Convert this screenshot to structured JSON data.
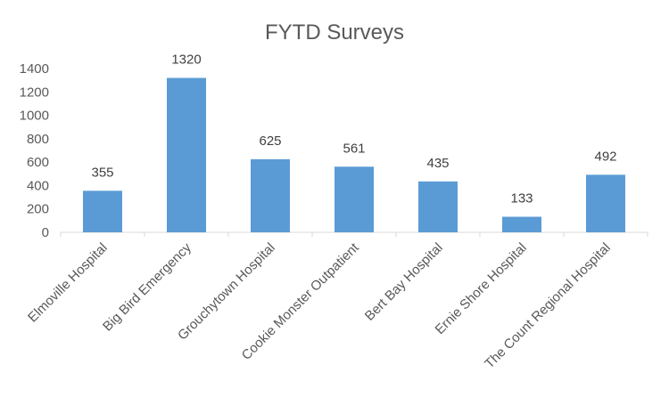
{
  "chart_data": {
    "type": "bar",
    "title": "FYTD Surveys",
    "categories": [
      "Elmoville Hospital",
      "Big Bird Emergency",
      "Grouchytown Hospital",
      "Cookie Monster Outpatient",
      "Bert Bay Hospital",
      "Ernie Shore Hospital",
      "The Count Regional Hospital"
    ],
    "values": [
      355,
      1320,
      625,
      561,
      435,
      133,
      492
    ],
    "yticks": [
      0,
      200,
      400,
      600,
      800,
      1000,
      1200,
      1400
    ],
    "ylim": [
      0,
      1400
    ],
    "xlabel": "",
    "ylabel": "",
    "grid": false,
    "legend": "none",
    "colors": {
      "bar": "#5B9BD5",
      "axis": "#D9D9D9",
      "text": "#595959"
    }
  }
}
